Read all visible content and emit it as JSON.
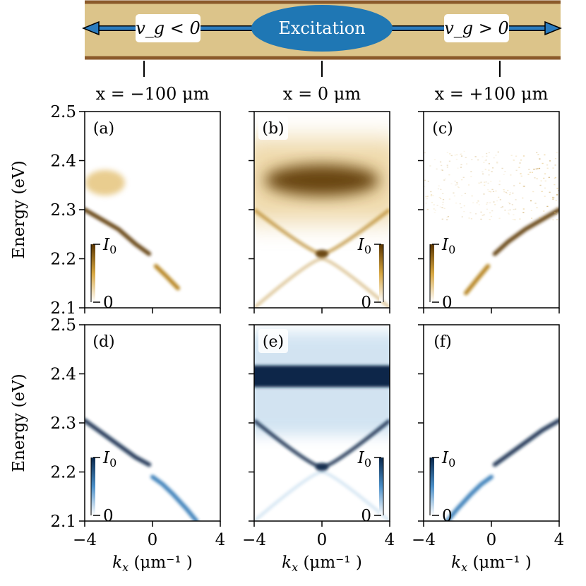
{
  "diagram": {
    "excitation_label": "Excitation",
    "left_label": "v_g < 0",
    "right_label": "v_g > 0",
    "left_position": "x = −100 μm",
    "center_position": "x = 0 μm",
    "right_position": "x = +100 μm",
    "colors": {
      "waveguide": "#dcc48a",
      "waveguide_border": "#8b5a2b",
      "arrow": "#2b7cbf",
      "excitation": "#1f77b4"
    }
  },
  "colorbar": {
    "max_label": "I_0",
    "min_label": "0"
  },
  "colors": {
    "experiment": "#8b5a00",
    "simulation": "#08306b"
  },
  "chart_data": [
    {
      "id": "a",
      "label": "(a)",
      "type": "heatmap",
      "source": "experiment",
      "position": "x = −100 μm",
      "xlabel": "",
      "ylabel": "Energy (eV)",
      "xlim": [
        -4,
        4
      ],
      "ylim": [
        2.1,
        2.5
      ],
      "xticks": [
        -4,
        0,
        4
      ],
      "yticks": [
        2.1,
        2.2,
        2.3,
        2.4,
        2.5
      ],
      "features": [
        {
          "kind": "branch",
          "k": [
            -4.0,
            -3.0,
            -2.0,
            -1.0,
            -0.2
          ],
          "E": [
            2.3,
            2.28,
            2.26,
            2.23,
            2.21
          ],
          "intensity": 0.9
        },
        {
          "kind": "branch",
          "k": [
            0.2,
            0.8,
            1.5
          ],
          "E": [
            2.185,
            2.165,
            2.14
          ],
          "intensity": 0.5
        },
        {
          "kind": "blob",
          "k": -2.8,
          "E": 2.355,
          "intensity": 0.35
        }
      ]
    },
    {
      "id": "b",
      "label": "(b)",
      "type": "heatmap",
      "source": "experiment",
      "position": "x = 0 μm",
      "xlabel": "",
      "ylabel": "",
      "xlim": [
        -4,
        4
      ],
      "ylim": [
        2.1,
        2.5
      ],
      "xticks": [
        -4,
        0,
        4
      ],
      "yticks": [
        2.1,
        2.2,
        2.3,
        2.4,
        2.5
      ],
      "features": [
        {
          "kind": "band",
          "E": 2.36,
          "intensity": 1.0
        },
        {
          "kind": "V",
          "apex_E": 2.21,
          "edge_E": 2.3,
          "intensity": 0.65
        },
        {
          "kind": "inverted-V",
          "apex_E": 2.2,
          "edge_E": 2.1,
          "intensity": 0.45
        },
        {
          "kind": "line",
          "E": 2.215,
          "intensity": 0.3
        }
      ]
    },
    {
      "id": "c",
      "label": "(c)",
      "type": "heatmap",
      "source": "experiment",
      "position": "x = +100 μm",
      "xlabel": "",
      "ylabel": "",
      "xlim": [
        -4,
        4
      ],
      "ylim": [
        2.1,
        2.5
      ],
      "xticks": [
        -4,
        0,
        4
      ],
      "yticks": [
        2.1,
        2.2,
        2.3,
        2.4,
        2.5
      ],
      "features": [
        {
          "kind": "branch",
          "k": [
            0.2,
            1.0,
            2.0,
            3.0,
            4.0
          ],
          "E": [
            2.21,
            2.235,
            2.26,
            2.28,
            2.3
          ],
          "intensity": 0.95
        },
        {
          "kind": "branch",
          "k": [
            -1.5,
            -0.8,
            -0.2
          ],
          "E": [
            2.13,
            2.16,
            2.185
          ],
          "intensity": 0.6
        },
        {
          "kind": "noise",
          "E_range": [
            2.28,
            2.42
          ],
          "k_range": [
            -4,
            4
          ],
          "intensity": 0.25
        }
      ]
    },
    {
      "id": "d",
      "label": "(d)",
      "type": "heatmap",
      "source": "simulation",
      "position": "x = −100 μm",
      "xlabel": "k_x (μm⁻¹ )",
      "ylabel": "Energy (eV)",
      "xlim": [
        -4,
        4
      ],
      "ylim": [
        2.1,
        2.5
      ],
      "xticks": [
        -4,
        0,
        4
      ],
      "yticks": [
        2.1,
        2.2,
        2.3,
        2.4,
        2.5
      ],
      "features": [
        {
          "kind": "branch",
          "k": [
            -4.0,
            -3.0,
            -2.0,
            -1.0,
            -0.2
          ],
          "E": [
            2.305,
            2.28,
            2.255,
            2.23,
            2.215
          ],
          "intensity": 0.75
        },
        {
          "kind": "branch",
          "k": [
            0.0,
            0.6,
            1.2,
            2.0,
            2.6
          ],
          "E": [
            2.19,
            2.175,
            2.155,
            2.125,
            2.1
          ],
          "intensity": 0.6
        }
      ]
    },
    {
      "id": "e",
      "label": "(e)",
      "type": "heatmap",
      "source": "simulation",
      "position": "x = 0 μm",
      "xlabel": "k_x (μm⁻¹ )",
      "ylabel": "",
      "xlim": [
        -4,
        4
      ],
      "ylim": [
        2.1,
        2.5
      ],
      "xticks": [
        -4,
        0,
        4
      ],
      "yticks": [
        2.1,
        2.2,
        2.3,
        2.4,
        2.5
      ],
      "features": [
        {
          "kind": "band",
          "E": 2.395,
          "intensity": 1.0
        },
        {
          "kind": "V",
          "apex_E": 2.21,
          "edge_E": 2.305,
          "intensity": 0.9
        },
        {
          "kind": "inverted-V",
          "apex_E": 2.2,
          "edge_E": 2.1,
          "intensity": 0.15
        }
      ]
    },
    {
      "id": "f",
      "label": "(f)",
      "type": "heatmap",
      "source": "simulation",
      "position": "x = +100 μm",
      "xlabel": "k_x (μm⁻¹ )",
      "ylabel": "",
      "xlim": [
        -4,
        4
      ],
      "ylim": [
        2.1,
        2.5
      ],
      "xticks": [
        -4,
        0,
        4
      ],
      "yticks": [
        2.1,
        2.2,
        2.3,
        2.4,
        2.5
      ],
      "features": [
        {
          "kind": "branch",
          "k": [
            0.2,
            1.0,
            2.0,
            3.0,
            4.0
          ],
          "E": [
            2.215,
            2.235,
            2.26,
            2.285,
            2.305
          ],
          "intensity": 0.75
        },
        {
          "kind": "branch",
          "k": [
            -2.6,
            -2.0,
            -1.2,
            -0.6,
            0.0
          ],
          "E": [
            2.1,
            2.125,
            2.155,
            2.175,
            2.19
          ],
          "intensity": 0.6
        }
      ]
    }
  ]
}
